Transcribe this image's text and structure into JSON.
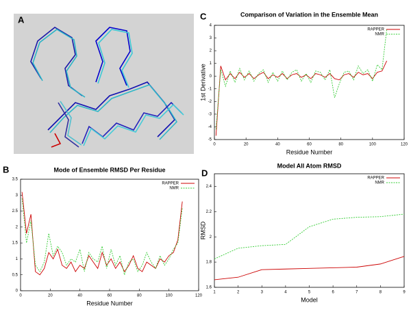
{
  "panel_labels": [
    "A",
    "B",
    "C",
    "D"
  ],
  "chart_data": [
    {
      "type": "line",
      "title": "Mode of Ensemble RMSD Per Residue",
      "x_label": "Residue Number",
      "legend": "upper right",
      "xlim": [
        0,
        120
      ],
      "xticks": [
        0,
        20,
        40,
        60,
        80,
        100,
        120
      ],
      "ylim": [
        0,
        3.5
      ],
      "yticks": [
        0,
        0.5,
        1,
        1.5,
        2,
        2.5,
        3,
        3.5
      ],
      "x": [
        1,
        4,
        7,
        10,
        13,
        16,
        19,
        22,
        25,
        28,
        31,
        34,
        37,
        40,
        43,
        46,
        49,
        52,
        55,
        58,
        61,
        64,
        67,
        70,
        73,
        76,
        79,
        82,
        85,
        88,
        91,
        94,
        97,
        100,
        103,
        106,
        109
      ],
      "series": [
        {
          "name": "RAPPER",
          "color": "#cc0000",
          "dashed": false,
          "values": [
            3.1,
            1.8,
            2.4,
            0.6,
            0.5,
            0.7,
            1.2,
            1.0,
            1.3,
            0.8,
            0.7,
            0.9,
            0.6,
            0.8,
            0.7,
            1.1,
            0.9,
            0.7,
            1.2,
            0.8,
            1.0,
            0.7,
            0.9,
            0.6,
            0.8,
            1.1,
            0.7,
            0.6,
            0.9,
            0.8,
            0.7,
            1.0,
            0.9,
            1.1,
            1.2,
            1.6,
            2.8
          ]
        },
        {
          "name": "NMR",
          "color": "#33cc33",
          "dashed": true,
          "values": [
            2.9,
            1.5,
            2.2,
            0.8,
            0.6,
            0.9,
            1.8,
            1.1,
            1.4,
            1.2,
            0.8,
            1.0,
            0.9,
            1.3,
            0.6,
            1.2,
            1.0,
            0.9,
            1.4,
            0.7,
            1.3,
            0.8,
            1.1,
            0.5,
            0.9,
            1.0,
            0.6,
            0.8,
            1.2,
            0.9,
            0.7,
            1.1,
            0.8,
            1.0,
            1.3,
            1.5,
            2.6
          ]
        }
      ]
    },
    {
      "type": "line",
      "title": "Comparison of Variation in the Ensemble Mean",
      "x_label": "Residue Number",
      "y_label": "1st Derivative",
      "legend": "upper right",
      "xlim": [
        0,
        120
      ],
      "xticks": [
        0,
        20,
        40,
        60,
        80,
        100,
        120
      ],
      "ylim": [
        -5,
        4
      ],
      "yticks": [
        -5,
        -4,
        -3,
        -2,
        -1,
        0,
        1,
        2,
        3,
        4
      ],
      "x": [
        1,
        4,
        7,
        10,
        13,
        16,
        19,
        22,
        25,
        28,
        31,
        34,
        37,
        40,
        43,
        46,
        49,
        52,
        55,
        58,
        61,
        64,
        67,
        70,
        73,
        76,
        79,
        82,
        85,
        88,
        91,
        94,
        97,
        100,
        103,
        106,
        109
      ],
      "series": [
        {
          "name": "RAPPER",
          "color": "#cc0000",
          "dashed": false,
          "values": [
            -4.7,
            0.8,
            -0.3,
            0.2,
            -0.2,
            0.3,
            -0.1,
            0.2,
            -0.2,
            0.1,
            0.3,
            -0.2,
            0.1,
            -0.1,
            0.2,
            -0.2,
            0.1,
            0.2,
            -0.1,
            0.1,
            -0.2,
            0.2,
            0.1,
            -0.1,
            0.2,
            -0.2,
            -0.3,
            0.1,
            0.2,
            -0.1,
            0.3,
            0.1,
            0.2,
            -0.2,
            0.3,
            0.4,
            1.2
          ]
        },
        {
          "name": "NMR",
          "color": "#33cc33",
          "dashed": true,
          "values": [
            -4.2,
            0.5,
            -0.8,
            0.4,
            -0.5,
            0.6,
            -0.3,
            0.4,
            -0.4,
            0.2,
            0.5,
            -0.5,
            0.3,
            -0.4,
            0.4,
            -0.3,
            0.3,
            0.5,
            -0.4,
            0.2,
            -0.5,
            0.4,
            0.3,
            -0.3,
            0.5,
            -1.7,
            -0.6,
            0.3,
            0.4,
            -0.3,
            0.8,
            0.2,
            0.5,
            -0.4,
            0.9,
            0.5,
            3.7
          ]
        }
      ]
    },
    {
      "type": "line",
      "title": "Model All Atom RMSD",
      "x_label": "Model",
      "y_label": "RMSD",
      "legend": "upper right",
      "xlim": [
        1,
        9
      ],
      "xticks": [
        1,
        2,
        3,
        4,
        5,
        6,
        7,
        8,
        9
      ],
      "ylim": [
        1.6,
        2.5
      ],
      "yticks": [
        1.6,
        1.8,
        2,
        2.2,
        2.4
      ],
      "x": [
        1,
        2,
        3,
        4,
        5,
        6,
        7,
        8,
        9
      ],
      "series": [
        {
          "name": "RAPPER",
          "color": "#cc0000",
          "dashed": false,
          "values": [
            1.66,
            1.68,
            1.74,
            1.745,
            1.75,
            1.755,
            1.76,
            1.785,
            1.845
          ]
        },
        {
          "name": "NMR",
          "color": "#33cc33",
          "dashed": true,
          "values": [
            1.825,
            1.91,
            1.93,
            1.94,
            2.08,
            2.14,
            2.155,
            2.16,
            2.18
          ]
        }
      ]
    }
  ]
}
